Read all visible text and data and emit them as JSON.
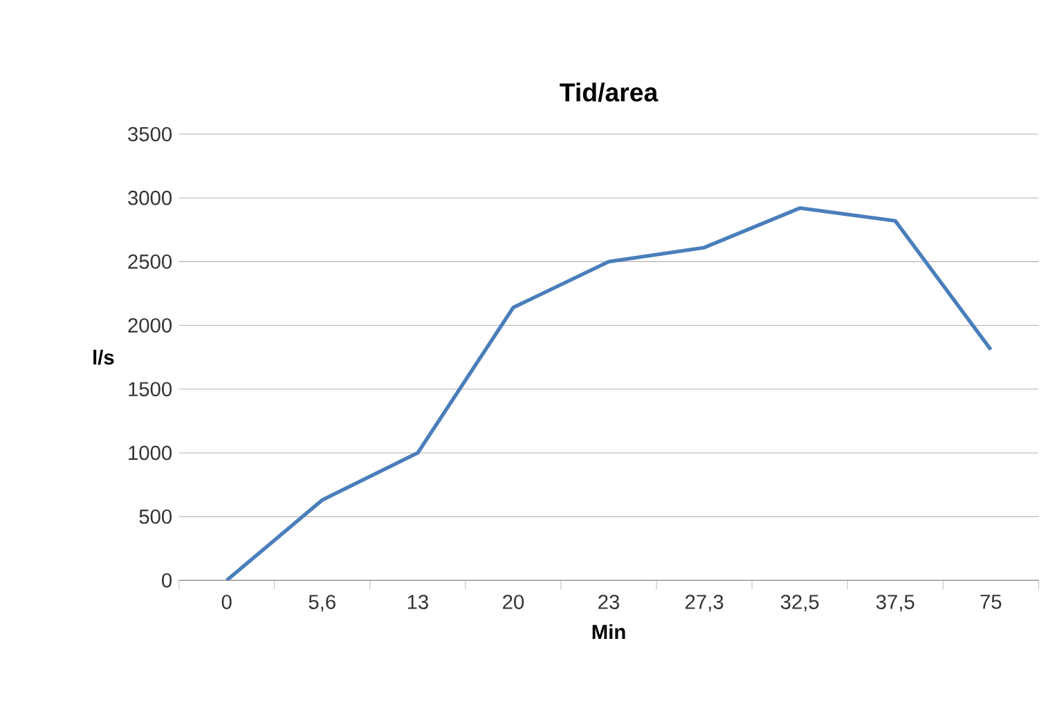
{
  "chart_data": {
    "type": "line",
    "title": "Tid/area",
    "xlabel": "Min",
    "ylabel": "l/s",
    "categories": [
      "0",
      "5,6",
      "13",
      "20",
      "23",
      "27,3",
      "32,5",
      "37,5",
      "75"
    ],
    "values": [
      0,
      630,
      1000,
      2140,
      2500,
      2610,
      2920,
      2820,
      1810
    ],
    "color": "#4a7ebb",
    "ylim": [
      0,
      3500
    ],
    "yticks": [
      0,
      500,
      1000,
      1500,
      2000,
      2500,
      3000,
      3500
    ],
    "grid": "y",
    "legend": false,
    "marker": "none",
    "line_style": "solid"
  }
}
